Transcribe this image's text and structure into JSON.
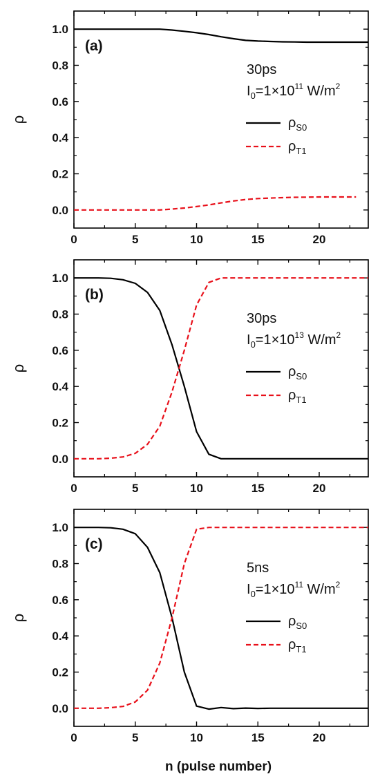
{
  "figure": {
    "xlabel": "n (pulse number)",
    "ylabel": "ρ"
  },
  "chart_data": [
    {
      "type": "line",
      "panel_label": "(a)",
      "xlim": [
        0,
        24
      ],
      "ylim": [
        -0.1,
        1.1
      ],
      "xticks": [
        0,
        5,
        10,
        15,
        20
      ],
      "yticks": [
        0.0,
        0.2,
        0.4,
        0.6,
        0.8,
        1.0
      ],
      "xtick_labels": [
        "0",
        "5",
        "10",
        "15",
        "20"
      ],
      "ytick_labels": [
        "0.0",
        "0.2",
        "0.4",
        "0.6",
        "0.8",
        "1.0"
      ],
      "annotation": {
        "line1": "30ps",
        "I_base": "I",
        "I_sub": "0",
        "eq_text": "=1×10",
        "exp": "11",
        "unit_base": " W/m",
        "unit_sup": "2"
      },
      "legend": {
        "position": "right",
        "items": [
          {
            "base": "ρ",
            "sub": "S0"
          },
          {
            "base": "ρ",
            "sub": "T1"
          }
        ]
      },
      "series": [
        {
          "style": "solid",
          "color": "#000000",
          "x": [
            0,
            1,
            2,
            3,
            4,
            5,
            6,
            7,
            8,
            9,
            10,
            11,
            12,
            13,
            14,
            15,
            16,
            17,
            18,
            19,
            20,
            21,
            22,
            23,
            24
          ],
          "y": [
            1.0,
            1.0,
            1.0,
            1.0,
            1.0,
            1.0,
            1.0,
            1.0,
            0.995,
            0.988,
            0.98,
            0.97,
            0.958,
            0.947,
            0.938,
            0.934,
            0.932,
            0.93,
            0.929,
            0.928,
            0.928,
            0.928,
            0.928,
            0.928,
            0.928
          ]
        },
        {
          "style": "dashed",
          "color": "#e8101a",
          "x": [
            0,
            1,
            2,
            3,
            4,
            5,
            6,
            7,
            8,
            9,
            10,
            11,
            12,
            13,
            14,
            15,
            16,
            17,
            18,
            19,
            20,
            21,
            22,
            23
          ],
          "y": [
            0.0,
            0.0,
            0.0,
            0.0,
            0.0,
            0.0,
            0.0,
            0.0,
            0.005,
            0.011,
            0.019,
            0.028,
            0.039,
            0.05,
            0.058,
            0.063,
            0.066,
            0.068,
            0.07,
            0.071,
            0.072,
            0.072,
            0.072,
            0.072
          ]
        }
      ]
    },
    {
      "type": "line",
      "panel_label": "(b)",
      "xlim": [
        0,
        24
      ],
      "ylim": [
        -0.1,
        1.1
      ],
      "xticks": [
        0,
        5,
        10,
        15,
        20
      ],
      "yticks": [
        0.0,
        0.2,
        0.4,
        0.6,
        0.8,
        1.0
      ],
      "xtick_labels": [
        "0",
        "5",
        "10",
        "15",
        "20"
      ],
      "ytick_labels": [
        "0.0",
        "0.2",
        "0.4",
        "0.6",
        "0.8",
        "1.0"
      ],
      "annotation": {
        "line1": "30ps",
        "I_base": "I",
        "I_sub": "0",
        "eq_text": "=1×10",
        "exp": "13",
        "unit_base": " W/m",
        "unit_sup": "2"
      },
      "legend": {
        "position": "right",
        "items": [
          {
            "base": "ρ",
            "sub": "S0"
          },
          {
            "base": "ρ",
            "sub": "T1"
          }
        ]
      },
      "series": [
        {
          "style": "solid",
          "color": "#000000",
          "x": [
            0,
            1,
            2,
            3,
            4,
            5,
            6,
            7,
            8,
            9,
            10,
            11,
            12,
            13,
            14,
            15,
            16,
            17,
            18,
            19,
            20,
            21,
            22,
            23,
            24
          ],
          "y": [
            1.0,
            1.0,
            1.0,
            0.998,
            0.99,
            0.97,
            0.92,
            0.82,
            0.63,
            0.4,
            0.15,
            0.025,
            0.0,
            0.0,
            0.0,
            0.0,
            0.0,
            0.0,
            0.0,
            0.0,
            0.0,
            0.0,
            0.0,
            0.0,
            0.0
          ]
        },
        {
          "style": "dashed",
          "color": "#e8101a",
          "x": [
            0,
            1,
            2,
            3,
            4,
            5,
            6,
            7,
            8,
            9,
            10,
            11,
            12,
            13,
            14,
            15,
            16,
            17,
            18,
            19,
            20,
            21,
            22,
            23,
            24
          ],
          "y": [
            0.0,
            0.0,
            0.0,
            0.003,
            0.01,
            0.03,
            0.08,
            0.18,
            0.37,
            0.6,
            0.85,
            0.975,
            1.0,
            1.0,
            1.0,
            1.0,
            1.0,
            1.0,
            1.0,
            1.0,
            1.0,
            1.0,
            1.0,
            1.0,
            1.0
          ]
        }
      ]
    },
    {
      "type": "line",
      "panel_label": "(c)",
      "xlim": [
        0,
        24
      ],
      "ylim": [
        -0.1,
        1.1
      ],
      "xticks": [
        0,
        5,
        10,
        15,
        20
      ],
      "yticks": [
        0.0,
        0.2,
        0.4,
        0.6,
        0.8,
        1.0
      ],
      "xtick_labels": [
        "0",
        "5",
        "10",
        "15",
        "20"
      ],
      "ytick_labels": [
        "0.0",
        "0.2",
        "0.4",
        "0.6",
        "0.8",
        "1.0"
      ],
      "annotation": {
        "line1": "5ns",
        "I_base": "I",
        "I_sub": "0",
        "eq_text": "=1×10",
        "exp": "11",
        "unit_base": " W/m",
        "unit_sup": "2"
      },
      "legend": {
        "position": "right",
        "items": [
          {
            "base": "ρ",
            "sub": "S0"
          },
          {
            "base": "ρ",
            "sub": "T1"
          }
        ]
      },
      "series": [
        {
          "style": "solid",
          "color": "#000000",
          "x": [
            0,
            1,
            2,
            3,
            4,
            5,
            6,
            7,
            8,
            9,
            10,
            11,
            12,
            13,
            14,
            15,
            16,
            17,
            18,
            19,
            20,
            21,
            22,
            23,
            24
          ],
          "y": [
            1.0,
            1.0,
            1.0,
            0.998,
            0.99,
            0.965,
            0.89,
            0.75,
            0.5,
            0.2,
            0.012,
            -0.005,
            0.004,
            -0.002,
            0.001,
            -0.001,
            0.0,
            0.0,
            0.0,
            0.0,
            0.0,
            0.0,
            0.0,
            0.0,
            0.0
          ]
        },
        {
          "style": "dashed",
          "color": "#e8101a",
          "x": [
            0,
            1,
            2,
            3,
            4,
            5,
            6,
            7,
            8,
            9,
            10,
            11,
            12,
            13,
            14,
            15,
            16,
            17,
            18,
            19,
            20,
            21,
            22,
            23,
            24
          ],
          "y": [
            0.0,
            0.0,
            0.0,
            0.003,
            0.01,
            0.035,
            0.1,
            0.25,
            0.5,
            0.8,
            0.99,
            1.0,
            1.0,
            1.0,
            1.0,
            1.0,
            1.0,
            1.0,
            1.0,
            1.0,
            1.0,
            1.0,
            1.0,
            1.0,
            1.0
          ]
        }
      ]
    }
  ]
}
